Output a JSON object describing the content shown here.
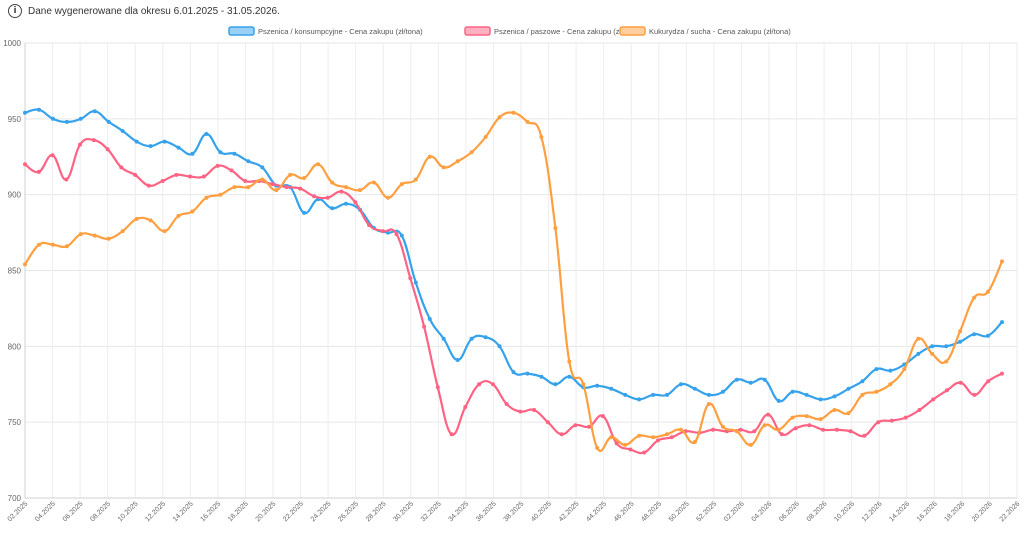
{
  "header": {
    "info_icon": "info-circle-icon",
    "period_text": "Dane wygenerowane dla okresu 6.01.2025 - 31.05.2026."
  },
  "chart_data": {
    "type": "line",
    "title": "",
    "xlabel": "",
    "ylabel": "",
    "ylim": [
      700,
      1000
    ],
    "y_ticks": [
      700,
      750,
      800,
      850,
      900,
      950,
      1000
    ],
    "grid": true,
    "legend_position": "top-center",
    "x_ticks": [
      "02.2025",
      "04.2025",
      "06.2025",
      "08.2025",
      "10.2025",
      "12.2025",
      "14.2025",
      "16.2025",
      "18.2025",
      "20.2025",
      "22.2025",
      "24.2025",
      "26.2025",
      "28.2025",
      "30.2025",
      "32.2025",
      "34.2025",
      "36.2025",
      "38.2025",
      "40.2025",
      "42.2025",
      "44.2025",
      "46.2025",
      "48.2025",
      "50.2025",
      "52.2025",
      "02.2026",
      "04.2026",
      "06.2026",
      "08.2026",
      "10.2026",
      "12.2026",
      "14.2026",
      "16.2026",
      "18.2026",
      "20.2026",
      "22.2026"
    ],
    "series": [
      {
        "name": "Pszenica / konsumpcyjne - Cena zakupu (zł/tona)",
        "color": "#36a2eb",
        "fill": "#9ad0f5",
        "values": [
          954,
          956,
          950,
          948,
          950,
          955,
          948,
          942,
          935,
          932,
          935,
          931,
          927,
          940,
          928,
          927,
          922,
          918,
          906,
          905,
          888,
          897,
          891,
          894,
          890,
          878,
          875,
          873,
          842,
          818,
          805,
          791,
          805,
          806,
          800,
          783,
          782,
          780,
          775,
          780,
          773,
          774,
          772,
          768,
          765,
          768,
          768,
          775,
          772,
          768,
          770,
          778,
          776,
          778,
          764,
          770,
          768,
          765,
          767,
          772,
          777,
          785,
          784,
          788,
          795,
          800,
          800,
          803,
          808,
          807,
          816
        ]
      },
      {
        "name": "Pszenica / paszowe - Cena zakupu (zł/tona)",
        "color": "#ff6384",
        "fill": "#ffb1c1",
        "values": [
          920,
          915,
          926,
          910,
          933,
          936,
          930,
          918,
          913,
          906,
          909,
          913,
          912,
          912,
          919,
          916,
          909,
          909,
          907,
          905,
          904,
          899,
          898,
          902,
          895,
          880,
          876,
          874,
          845,
          813,
          773,
          742,
          760,
          775,
          775,
          762,
          757,
          758,
          750,
          742,
          748,
          747,
          754,
          736,
          732,
          730,
          738,
          740,
          744,
          743,
          745,
          744,
          745,
          744,
          755,
          742,
          746,
          748,
          745,
          745,
          744,
          741,
          750,
          751,
          753,
          758,
          765,
          771,
          776,
          768,
          777,
          782
        ]
      },
      {
        "name": "Kukurydza / sucha - Cena zakupu (zł/tona)",
        "color": "#ff9f40",
        "fill": "#ffcf9f",
        "values": [
          854,
          867,
          867,
          866,
          874,
          873,
          871,
          876,
          884,
          883,
          876,
          886,
          889,
          898,
          900,
          905,
          905,
          910,
          903,
          913,
          911,
          920,
          908,
          905,
          903,
          908,
          898,
          907,
          910,
          925,
          918,
          922,
          928,
          938,
          951,
          954,
          948,
          938,
          878,
          790,
          775,
          733,
          740,
          735,
          741,
          740,
          742,
          745,
          737,
          762,
          747,
          744,
          735,
          748,
          745,
          753,
          754,
          752,
          758,
          756,
          768,
          770,
          775,
          785,
          805,
          795,
          790,
          810,
          832,
          836,
          856
        ]
      }
    ]
  }
}
